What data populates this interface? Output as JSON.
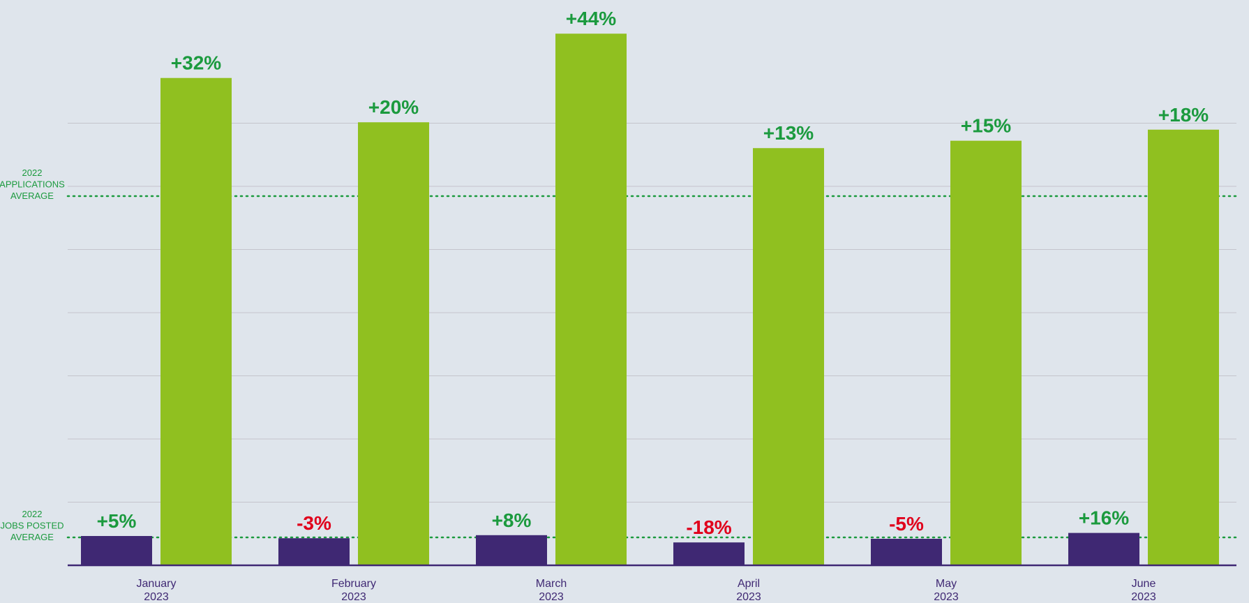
{
  "chart_data": {
    "type": "bar",
    "categories": [
      [
        "January",
        "2023"
      ],
      [
        "February",
        "2023"
      ],
      [
        "March",
        "2023"
      ],
      [
        "April",
        "2023"
      ],
      [
        "May",
        "2023"
      ],
      [
        "June",
        "2023"
      ]
    ],
    "series": [
      {
        "color": "#3f2873",
        "values": [
          1.05,
          0.97,
          1.08,
          0.82,
          0.95,
          1.16
        ],
        "labels": [
          "+5%",
          "-3%",
          "+8%",
          "-18%",
          "-5%",
          "+16%"
        ]
      },
      {
        "color": "#90c020",
        "values": [
          1.32,
          1.2,
          1.44,
          1.13,
          1.15,
          1.18
        ],
        "labels": [
          "+32%",
          "+20%",
          "+44%",
          "+13%",
          "+15%",
          "+18%"
        ]
      }
    ],
    "reference_lines": [
      {
        "label": [
          "2022",
          "APPLICATIONS",
          "AVERAGE"
        ],
        "color": "#1b9a3e"
      },
      {
        "label": [
          "2022",
          "JOBS POSTED",
          "AVERAGE"
        ],
        "color": "#1b9a3e"
      }
    ],
    "positive_label_color": "#1b9a3e",
    "negative_label_color": "#e0001b",
    "grid": true,
    "legend": false
  }
}
